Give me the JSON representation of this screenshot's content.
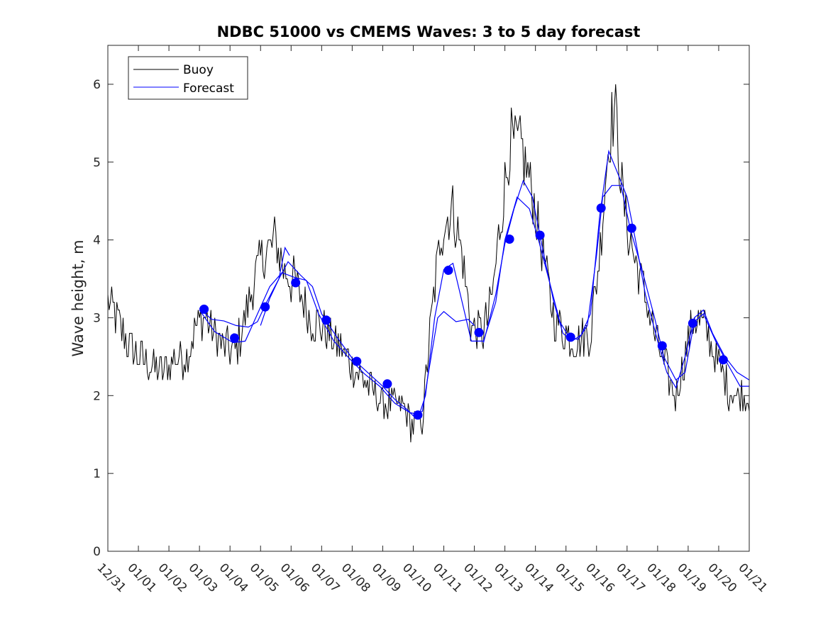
{
  "chart_data": {
    "type": "line",
    "title": "NDBC 51000 vs CMEMS Waves: 3 to 5 day forecast",
    "xlabel": "",
    "ylabel": "Wave height, m",
    "x_range": [
      0,
      21
    ],
    "ylim": [
      0,
      6.5
    ],
    "x_tick_labels": [
      "12/31",
      "01/01",
      "01/02",
      "01/03",
      "01/04",
      "01/05",
      "01/06",
      "01/07",
      "01/08",
      "01/09",
      "01/10",
      "01/11",
      "01/12",
      "01/13",
      "01/14",
      "01/15",
      "01/16",
      "01/17",
      "01/18",
      "01/19",
      "01/20",
      "01/21"
    ],
    "y_ticks": [
      0,
      1,
      2,
      3,
      4,
      5,
      6
    ],
    "legend": {
      "position": "top-left",
      "entries": [
        "Buoy",
        "Forecast"
      ]
    },
    "colors": {
      "buoy": "#000000",
      "forecast": "#0000ff"
    },
    "series": [
      {
        "name": "Buoy",
        "color": "#000000",
        "anchors": [
          [
            0.0,
            3.2
          ],
          [
            0.3,
            3.0
          ],
          [
            0.6,
            2.7
          ],
          [
            1.0,
            2.5
          ],
          [
            1.4,
            2.4
          ],
          [
            1.8,
            2.3
          ],
          [
            2.2,
            2.5
          ],
          [
            2.6,
            2.5
          ],
          [
            2.9,
            2.9
          ],
          [
            3.2,
            3.0
          ],
          [
            3.5,
            2.8
          ],
          [
            3.8,
            2.6
          ],
          [
            4.2,
            2.6
          ],
          [
            4.5,
            3.0
          ],
          [
            4.8,
            3.5
          ],
          [
            5.1,
            3.8
          ],
          [
            5.5,
            4.0
          ],
          [
            5.8,
            3.6
          ],
          [
            6.2,
            3.4
          ],
          [
            6.6,
            3.0
          ],
          [
            7.0,
            2.9
          ],
          [
            7.4,
            2.7
          ],
          [
            7.8,
            2.5
          ],
          [
            8.2,
            2.3
          ],
          [
            8.6,
            2.1
          ],
          [
            9.0,
            1.9
          ],
          [
            9.4,
            1.9
          ],
          [
            9.7,
            1.8
          ],
          [
            10.0,
            1.6
          ],
          [
            10.3,
            1.7
          ],
          [
            10.6,
            3.0
          ],
          [
            10.9,
            4.1
          ],
          [
            11.3,
            4.4
          ],
          [
            11.6,
            3.8
          ],
          [
            11.9,
            2.9
          ],
          [
            12.3,
            2.8
          ],
          [
            12.6,
            3.3
          ],
          [
            12.9,
            4.4
          ],
          [
            13.2,
            5.3
          ],
          [
            13.6,
            5.1
          ],
          [
            13.9,
            4.6
          ],
          [
            14.2,
            3.9
          ],
          [
            14.6,
            3.0
          ],
          [
            15.0,
            2.8
          ],
          [
            15.4,
            2.7
          ],
          [
            15.8,
            2.8
          ],
          [
            16.1,
            3.8
          ],
          [
            16.4,
            5.3
          ],
          [
            16.6,
            5.7
          ],
          [
            16.9,
            4.4
          ],
          [
            17.2,
            3.8
          ],
          [
            17.6,
            3.3
          ],
          [
            17.9,
            2.8
          ],
          [
            18.3,
            2.3
          ],
          [
            18.6,
            2.0
          ],
          [
            18.9,
            2.5
          ],
          [
            19.2,
            3.0
          ],
          [
            19.5,
            2.9
          ],
          [
            19.9,
            2.5
          ],
          [
            20.3,
            2.1
          ],
          [
            20.6,
            2.0
          ],
          [
            21.0,
            2.0
          ]
        ]
      },
      {
        "name": "Forecast",
        "color": "#0000ff",
        "segments": [
          [
            [
              3.0,
              3.12
            ],
            [
              3.4,
              2.98
            ],
            [
              3.8,
              2.96
            ],
            [
              4.2,
              2.9
            ],
            [
              4.6,
              2.88
            ],
            [
              4.9,
              2.95
            ],
            [
              5.2,
              3.2
            ],
            [
              5.6,
              3.5
            ],
            [
              5.9,
              3.72
            ],
            [
              6.3,
              3.55
            ],
            [
              6.7,
              3.4
            ],
            [
              7.0,
              3.05
            ],
            [
              7.5,
              2.75
            ],
            [
              8.0,
              2.48
            ],
            [
              8.5,
              2.3
            ],
            [
              9.0,
              2.12
            ],
            [
              9.4,
              1.95
            ],
            [
              9.8,
              1.82
            ],
            [
              10.0,
              1.74
            ],
            [
              10.3,
              1.8
            ],
            [
              10.5,
              2.3
            ],
            [
              10.8,
              3.0
            ],
            [
              11.0,
              3.08
            ],
            [
              11.4,
              2.95
            ],
            [
              11.8,
              2.98
            ],
            [
              12.0,
              2.9
            ]
          ],
          [
            [
              3.0,
              3.1
            ],
            [
              3.5,
              2.82
            ],
            [
              4.1,
              2.68
            ],
            [
              4.5,
              2.7
            ],
            [
              4.9,
              3.05
            ],
            [
              5.3,
              3.4
            ],
            [
              5.7,
              3.58
            ],
            [
              6.1,
              3.52
            ],
            [
              6.5,
              3.48
            ],
            [
              6.9,
              3.05
            ],
            [
              7.4,
              2.7
            ],
            [
              7.9,
              2.48
            ],
            [
              8.4,
              2.28
            ],
            [
              8.9,
              2.12
            ],
            [
              9.4,
              1.9
            ],
            [
              9.9,
              1.78
            ],
            [
              10.2,
              1.76
            ],
            [
              10.4,
              2.0
            ],
            [
              10.7,
              3.0
            ],
            [
              11.0,
              3.62
            ],
            [
              11.3,
              3.7
            ],
            [
              11.6,
              3.2
            ],
            [
              11.9,
              2.7
            ],
            [
              12.3,
              2.7
            ],
            [
              12.7,
              3.2
            ],
            [
              13.0,
              4.0
            ],
            [
              13.4,
              4.55
            ],
            [
              13.8,
              4.4
            ],
            [
              14.1,
              4.0
            ],
            [
              14.5,
              3.4
            ],
            [
              14.8,
              2.95
            ],
            [
              15.1,
              2.75
            ],
            [
              15.4,
              2.72
            ],
            [
              15.7,
              2.9
            ],
            [
              16.0,
              3.8
            ],
            [
              16.2,
              4.55
            ],
            [
              16.5,
              4.7
            ],
            [
              16.8,
              4.7
            ],
            [
              17.1,
              4.15
            ],
            [
              17.5,
              3.6
            ],
            [
              17.9,
              3.0
            ],
            [
              18.2,
              2.5
            ],
            [
              18.6,
              2.2
            ],
            [
              18.9,
              2.3
            ],
            [
              19.2,
              2.95
            ],
            [
              19.5,
              3.05
            ],
            [
              19.9,
              2.7
            ],
            [
              20.3,
              2.4
            ],
            [
              20.7,
              2.12
            ],
            [
              21.0,
              2.12
            ]
          ],
          [
            [
              5.0,
              2.9
            ],
            [
              5.3,
              3.25
            ],
            [
              5.6,
              3.5
            ],
            [
              5.8,
              3.9
            ],
            [
              5.95,
              3.8
            ]
          ],
          [
            [
              12.3,
              2.68
            ],
            [
              12.7,
              3.3
            ],
            [
              13.0,
              3.95
            ],
            [
              13.3,
              4.4
            ],
            [
              13.6,
              4.76
            ],
            [
              13.9,
              4.55
            ],
            [
              14.2,
              3.95
            ],
            [
              14.6,
              3.2
            ],
            [
              14.9,
              2.8
            ],
            [
              15.2,
              2.7
            ],
            [
              15.5,
              2.78
            ],
            [
              15.8,
              3.05
            ],
            [
              16.1,
              4.3
            ],
            [
              16.4,
              5.14
            ],
            [
              16.7,
              4.85
            ],
            [
              17.0,
              4.55
            ],
            [
              17.3,
              3.95
            ],
            [
              17.6,
              3.3
            ],
            [
              18.0,
              2.7
            ],
            [
              18.3,
              2.3
            ],
            [
              18.6,
              2.1
            ],
            [
              18.9,
              2.5
            ],
            [
              19.2,
              3.0
            ],
            [
              19.5,
              3.1
            ],
            [
              19.8,
              2.8
            ],
            [
              20.2,
              2.5
            ],
            [
              20.6,
              2.3
            ],
            [
              21.0,
              2.2
            ]
          ]
        ],
        "markers": [
          [
            3.15,
            3.11
          ],
          [
            4.15,
            2.74
          ],
          [
            5.15,
            3.14
          ],
          [
            6.15,
            3.45
          ],
          [
            7.15,
            2.97
          ],
          [
            8.15,
            2.44
          ],
          [
            9.15,
            2.15
          ],
          [
            10.15,
            1.75
          ],
          [
            11.15,
            3.61
          ],
          [
            12.15,
            2.81
          ],
          [
            13.15,
            4.01
          ],
          [
            14.15,
            4.06
          ],
          [
            15.15,
            2.75
          ],
          [
            16.15,
            4.41
          ],
          [
            17.15,
            4.15
          ],
          [
            18.15,
            2.64
          ],
          [
            19.15,
            2.93
          ],
          [
            20.15,
            2.46
          ]
        ]
      }
    ]
  }
}
